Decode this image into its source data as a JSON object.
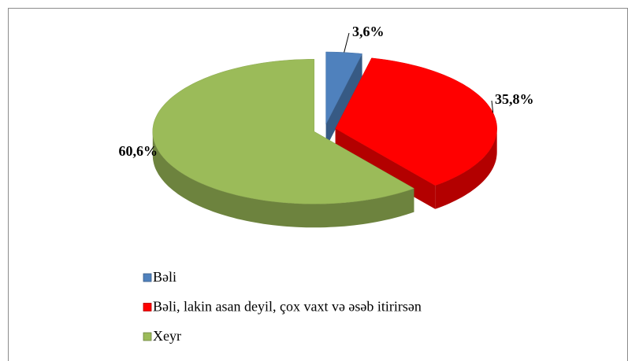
{
  "chart_data": {
    "type": "pie",
    "categories": [
      "Bəli",
      "Bəli, lakin asan deyil, çox vaxt və əsəb itirirsən",
      "Xeyr"
    ],
    "values": [
      3.6,
      35.8,
      60.6
    ],
    "value_labels": [
      "3,6%",
      "35,8%",
      "60,6%"
    ],
    "colors": [
      "#4f81bd",
      "#ff0000",
      "#9bbb59"
    ],
    "legend": "bottom-left"
  }
}
